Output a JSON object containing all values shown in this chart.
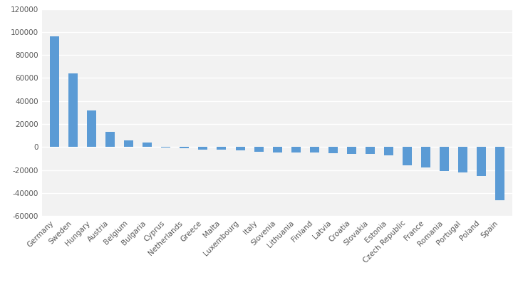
{
  "categories": [
    "Germany",
    "Sweden",
    "Hungary",
    "Austria",
    "Belgium",
    "Bulgaria",
    "Cyprus",
    "Netherlands",
    "Greece",
    "Malta",
    "Luxembourg",
    "Italy",
    "Slovenia",
    "Lithuania",
    "Finland",
    "Latvia",
    "Croatia",
    "Slovakia",
    "Estonia",
    "Czech Republic",
    "France",
    "Romania",
    "Portugal",
    "Poland",
    "Spain"
  ],
  "values": [
    96000,
    64000,
    32000,
    13000,
    6000,
    4000,
    -500,
    -1000,
    -2000,
    -2500,
    -3000,
    -4000,
    -4500,
    -5000,
    -5000,
    -5500,
    -6000,
    -6000,
    -7000,
    -16000,
    -18000,
    -21000,
    -22000,
    -25000,
    -46000
  ],
  "bar_color": "#5B9BD5",
  "ylim": [
    -60000,
    120000
  ],
  "yticks": [
    -60000,
    -40000,
    -20000,
    0,
    20000,
    40000,
    60000,
    80000,
    100000,
    120000
  ],
  "bg_color": "#FFFFFF",
  "plot_bg_color": "#F2F2F2",
  "grid_color": "#FFFFFF",
  "tick_label_fontsize": 7.5,
  "axis_label_color": "#595959"
}
